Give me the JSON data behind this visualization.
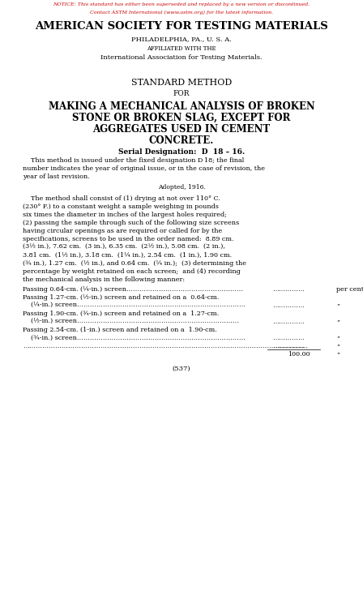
{
  "bg_color": "#ffffff",
  "notice_line1": "NOTICE: This standard has either been superseded and replaced by a new version or discontinued.",
  "notice_line2": "Contact ASTM International (www.astm.org) for the latest information.",
  "notice_color": "#cc0000",
  "header1": "AMERICAN SOCIETY FOR TESTING MATERIALS",
  "header2": "PHILADELPHIA, PA., U. S. A.",
  "header3": "AFFILIATED WITH THE",
  "header4": "International Association for Testing Materials.",
  "title1": "STANDARD METHOD",
  "title2": "FOR",
  "title3": "MAKING A MECHANICAL ANALYSIS OF BROKEN",
  "title4": "STONE OR BROKEN SLAG, EXCEPT FOR",
  "title5": "AGGREGATES USED IN CEMENT",
  "title6": "CONCRETE.",
  "serial": "Serial Designation:  D  18 – 16.",
  "adopted": "Adopted, 1916.",
  "page_num": "(537)"
}
